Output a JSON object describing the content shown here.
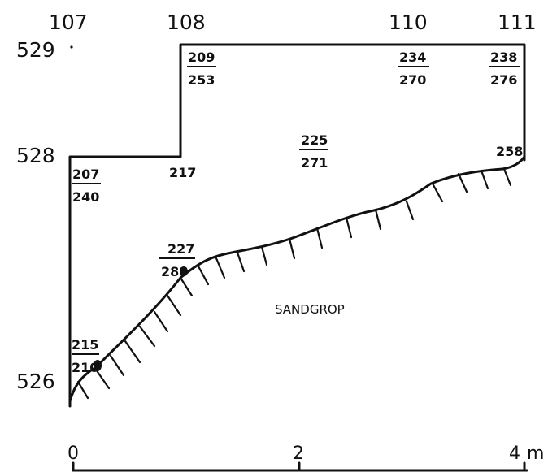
{
  "grid_x_labels": [
    "107",
    "108",
    "110",
    "111"
  ],
  "grid_y_labels": [
    "529",
    "528",
    "526"
  ],
  "measurements": [
    {
      "top": "209",
      "bottom": "253"
    },
    {
      "top": "234",
      "bottom": "270"
    },
    {
      "top": "238",
      "bottom": "276"
    },
    {
      "top": "225",
      "bottom": "271"
    },
    {
      "top": "207",
      "bottom": "240"
    },
    {
      "top": "227",
      "bottom": "288"
    },
    {
      "top": "215",
      "bottom": "210"
    }
  ],
  "single_values": [
    "217",
    "258"
  ],
  "area_label": "SANDGROP",
  "scale": {
    "labels": [
      "0",
      "2",
      "4"
    ],
    "unit": "m"
  }
}
